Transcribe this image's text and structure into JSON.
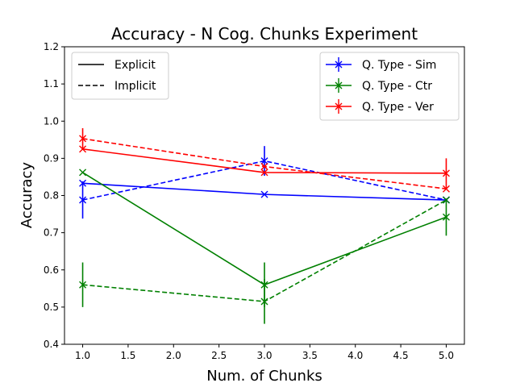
{
  "chart_data": {
    "type": "line",
    "title": "Accuracy - N Cog. Chunks Experiment",
    "xlabel": "Num. of Chunks",
    "ylabel": "Accuracy",
    "xlim": [
      0.8,
      5.2
    ],
    "ylim": [
      0.4,
      1.2
    ],
    "xticks": [
      1.0,
      1.5,
      2.0,
      2.5,
      3.0,
      3.5,
      4.0,
      4.5,
      5.0
    ],
    "yticks": [
      0.4,
      0.5,
      0.6,
      0.7,
      0.8,
      0.9,
      1.0,
      1.1,
      1.2
    ],
    "x": [
      1,
      3,
      5
    ],
    "grid": false,
    "style_legend": {
      "placement": "top-left",
      "items": [
        {
          "label": "Explicit",
          "dash": "solid"
        },
        {
          "label": "Implicit",
          "dash": "dashed"
        }
      ]
    },
    "type_legend": {
      "placement": "top-right",
      "items": [
        {
          "label": "Q. Type - Sim",
          "color": "#0000ff"
        },
        {
          "label": "Q. Type - Ctr",
          "color": "#008000"
        },
        {
          "label": "Q. Type - Ver",
          "color": "#ff0000"
        }
      ]
    },
    "series": [
      {
        "name": "Sim Explicit",
        "qtype": "Q. Type - Sim",
        "style": "Explicit",
        "color": "#0000ff",
        "dash": "solid",
        "values": [
          0.833,
          0.803,
          0.788
        ],
        "errors": [
          0.0,
          0.0,
          0.0
        ]
      },
      {
        "name": "Sim Implicit",
        "qtype": "Q. Type - Sim",
        "style": "Implicit",
        "color": "#0000ff",
        "dash": "dashed",
        "values": [
          0.788,
          0.893,
          0.788
        ],
        "errors": [
          0.05,
          0.04,
          0.0
        ]
      },
      {
        "name": "Ctr Explicit",
        "qtype": "Q. Type - Ctr",
        "style": "Explicit",
        "color": "#008000",
        "dash": "solid",
        "values": [
          0.862,
          0.56,
          0.742
        ],
        "errors": [
          0.0,
          0.06,
          0.05
        ]
      },
      {
        "name": "Ctr Implicit",
        "qtype": "Q. Type - Ctr",
        "style": "Implicit",
        "color": "#008000",
        "dash": "dashed",
        "values": [
          0.56,
          0.515,
          0.788
        ],
        "errors": [
          0.06,
          0.06,
          0.0
        ]
      },
      {
        "name": "Ver Explicit",
        "qtype": "Q. Type - Ver",
        "style": "Explicit",
        "color": "#ff0000",
        "dash": "solid",
        "values": [
          0.925,
          0.862,
          0.86
        ],
        "errors": [
          0.0,
          0.0,
          0.04
        ]
      },
      {
        "name": "Ver Implicit",
        "qtype": "Q. Type - Ver",
        "style": "Implicit",
        "color": "#ff0000",
        "dash": "dashed",
        "values": [
          0.953,
          0.878,
          0.818
        ],
        "errors": [
          0.028,
          0.0,
          0.0
        ]
      }
    ]
  }
}
